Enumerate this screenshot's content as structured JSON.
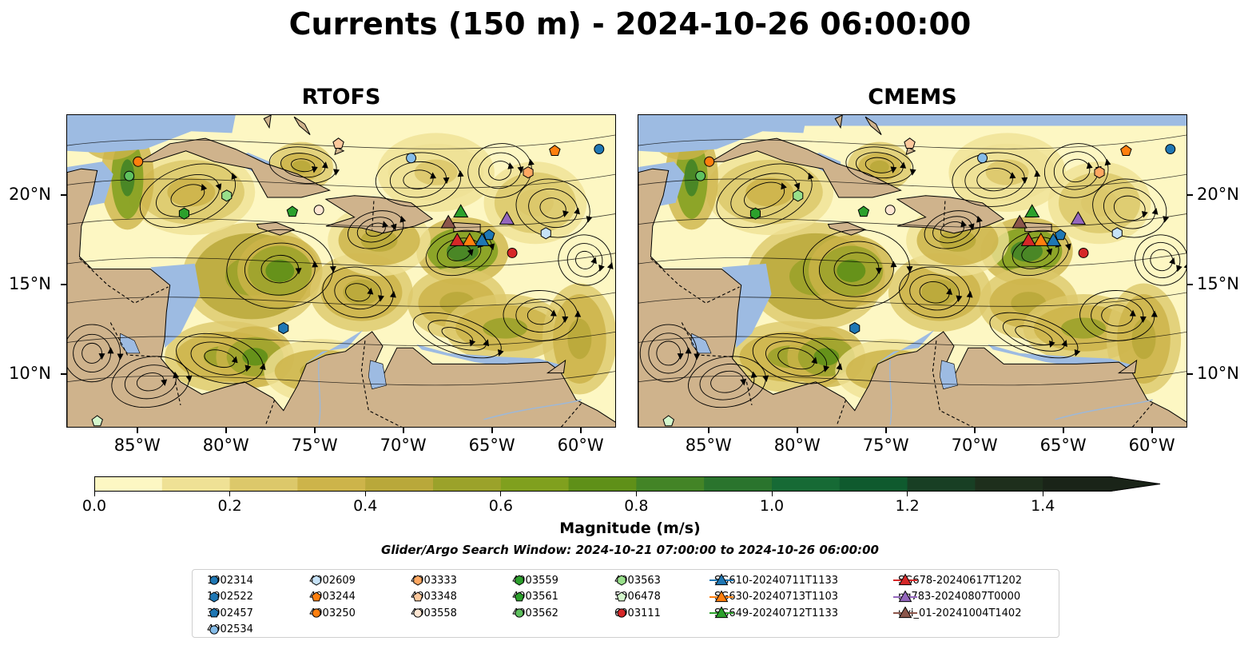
{
  "title": "Currents (150 m) - 2024-10-26 06:00:00",
  "panels": [
    {
      "title": "RTOFS"
    },
    {
      "title": "CMEMS"
    }
  ],
  "axes": {
    "x_ticks": [
      "85°W",
      "80°W",
      "75°W",
      "70°W",
      "65°W",
      "60°W"
    ],
    "x_values": [
      -85,
      -80,
      -75,
      -70,
      -65,
      -60
    ],
    "y_ticks": [
      "20°N",
      "15°N",
      "10°N"
    ],
    "y_values": [
      20,
      15,
      10
    ],
    "lon_range": [
      -89,
      -58
    ],
    "lat_range": [
      7,
      24.5
    ]
  },
  "colorbar": {
    "label": "Magnitude (m/s)",
    "ticks": [
      "0.0",
      "0.2",
      "0.4",
      "0.6",
      "0.8",
      "1.0",
      "1.2",
      "1.4"
    ],
    "tick_values": [
      0.0,
      0.2,
      0.4,
      0.6,
      0.8,
      1.0,
      1.2,
      1.4
    ],
    "range": [
      0,
      1.5
    ],
    "extend": "max",
    "colors": [
      "#fdf7c3",
      "#efe195",
      "#dcc86a",
      "#cdb44a",
      "#b9a83a",
      "#9ba22a",
      "#80a01e",
      "#5f9018",
      "#438426",
      "#2a742d",
      "#166a35",
      "#0f5a2e",
      "#183f24",
      "#1e2f1c",
      "#1a2418"
    ]
  },
  "search_window": "Glider/Argo Search Window: 2024-10-21 07:00:00 to 2024-10-26 06:00:00",
  "colors": {
    "ocean_land": "#cfb38c",
    "water_blue": "#9dbbe2",
    "river": "#9db8d8"
  },
  "legend": [
    {
      "label": "1902314",
      "marker": "circle",
      "color": "#1f77b4"
    },
    {
      "label": "1902522",
      "marker": "hexagon",
      "color": "#1f77b4"
    },
    {
      "label": "3902457",
      "marker": "pentagon",
      "color": "#1f77b4"
    },
    {
      "label": "4902534",
      "marker": "circle",
      "color": "#85bce8"
    },
    {
      "label": "4902609",
      "marker": "hexagon",
      "color": "#c6e2f7"
    },
    {
      "label": "4903244",
      "marker": "pentagon",
      "color": "#ff7f0e"
    },
    {
      "label": "4903250",
      "marker": "circle",
      "color": "#ff7f0e"
    },
    {
      "label": "4903333",
      "marker": "hexagon",
      "color": "#ffa862"
    },
    {
      "label": "4903348",
      "marker": "pentagon",
      "color": "#fdc89c"
    },
    {
      "label": "4903558",
      "marker": "circle",
      "color": "#fee6d2"
    },
    {
      "label": "4903559",
      "marker": "hexagon",
      "color": "#2ca02c"
    },
    {
      "label": "4903561",
      "marker": "pentagon",
      "color": "#2ca02c"
    },
    {
      "label": "4903562",
      "marker": "circle",
      "color": "#5fc15f"
    },
    {
      "label": "4903563",
      "marker": "hexagon",
      "color": "#98df8a"
    },
    {
      "label": "5906478",
      "marker": "pentagon",
      "color": "#d4f7cc"
    },
    {
      "label": "6903111",
      "marker": "circle",
      "color": "#d62728"
    },
    {
      "label": "SG610-20240711T1133",
      "marker": "triangle",
      "color": "#1f77b4"
    },
    {
      "label": "SG630-20240713T1103",
      "marker": "triangle",
      "color": "#ff7f0e"
    },
    {
      "label": "SG649-20240712T1133",
      "marker": "triangle",
      "color": "#2ca02c"
    },
    {
      "label": "SG678-20240617T1202",
      "marker": "triangle",
      "color": "#d62728"
    },
    {
      "label": "ng783-20240807T0000",
      "marker": "triangle",
      "color": "#9467bd"
    },
    {
      "label": "uvi_01-20241004T1402",
      "marker": "triangle",
      "color": "#8c564b"
    }
  ],
  "chart_data": {
    "type": "scatter",
    "title": "Currents (150 m) - 2024-10-26 06:00:00",
    "xlabel": "",
    "ylabel": "",
    "x_range": [
      -89,
      -58
    ],
    "y_range": [
      7,
      24.5
    ],
    "series": [
      {
        "name": "1902314",
        "points": [
          {
            "lon": -59.0,
            "lat": 22.6
          }
        ]
      },
      {
        "name": "1902522",
        "points": [
          {
            "lon": -76.8,
            "lat": 12.6
          }
        ]
      },
      {
        "name": "3902457",
        "points": [
          {
            "lon": -65.2,
            "lat": 17.8
          }
        ]
      },
      {
        "name": "4902534",
        "points": [
          {
            "lon": -69.6,
            "lat": 22.1
          }
        ]
      },
      {
        "name": "4902609",
        "points": [
          {
            "lon": -62.0,
            "lat": 17.9
          }
        ]
      },
      {
        "name": "4903244",
        "points": [
          {
            "lon": -61.5,
            "lat": 22.5
          }
        ]
      },
      {
        "name": "4903250",
        "points": [
          {
            "lon": -85.0,
            "lat": 21.9
          }
        ]
      },
      {
        "name": "4903333",
        "points": [
          {
            "lon": -63.0,
            "lat": 21.3
          }
        ]
      },
      {
        "name": "4903348",
        "points": [
          {
            "lon": -73.7,
            "lat": 22.9
          }
        ]
      },
      {
        "name": "4903558",
        "points": [
          {
            "lon": -74.8,
            "lat": 19.2
          }
        ]
      },
      {
        "name": "4903559",
        "points": [
          {
            "lon": -82.4,
            "lat": 19.0
          }
        ]
      },
      {
        "name": "4903561",
        "points": [
          {
            "lon": -76.3,
            "lat": 19.1
          }
        ]
      },
      {
        "name": "4903562",
        "points": [
          {
            "lon": -85.5,
            "lat": 21.1
          }
        ]
      },
      {
        "name": "4903563",
        "points": [
          {
            "lon": -80.0,
            "lat": 20.0
          }
        ]
      },
      {
        "name": "5906478",
        "points": [
          {
            "lon": -87.3,
            "lat": 7.4
          }
        ]
      },
      {
        "name": "6903111",
        "points": [
          {
            "lon": -63.9,
            "lat": 16.8
          }
        ]
      },
      {
        "name": "SG610-20240711T1133",
        "points": [
          {
            "lon": -65.6,
            "lat": 17.5
          }
        ]
      },
      {
        "name": "SG630-20240713T1103",
        "points": [
          {
            "lon": -66.3,
            "lat": 17.5
          }
        ]
      },
      {
        "name": "SG649-20240712T1133",
        "points": [
          {
            "lon": -66.8,
            "lat": 19.1
          }
        ]
      },
      {
        "name": "SG678-20240617T1202",
        "points": [
          {
            "lon": -67.0,
            "lat": 17.5
          }
        ]
      },
      {
        "name": "ng783-20240807T0000",
        "points": [
          {
            "lon": -64.2,
            "lat": 18.7
          }
        ]
      },
      {
        "name": "uvi_01-20241004T1402",
        "points": [
          {
            "lon": -67.5,
            "lat": 18.5
          }
        ]
      }
    ]
  }
}
